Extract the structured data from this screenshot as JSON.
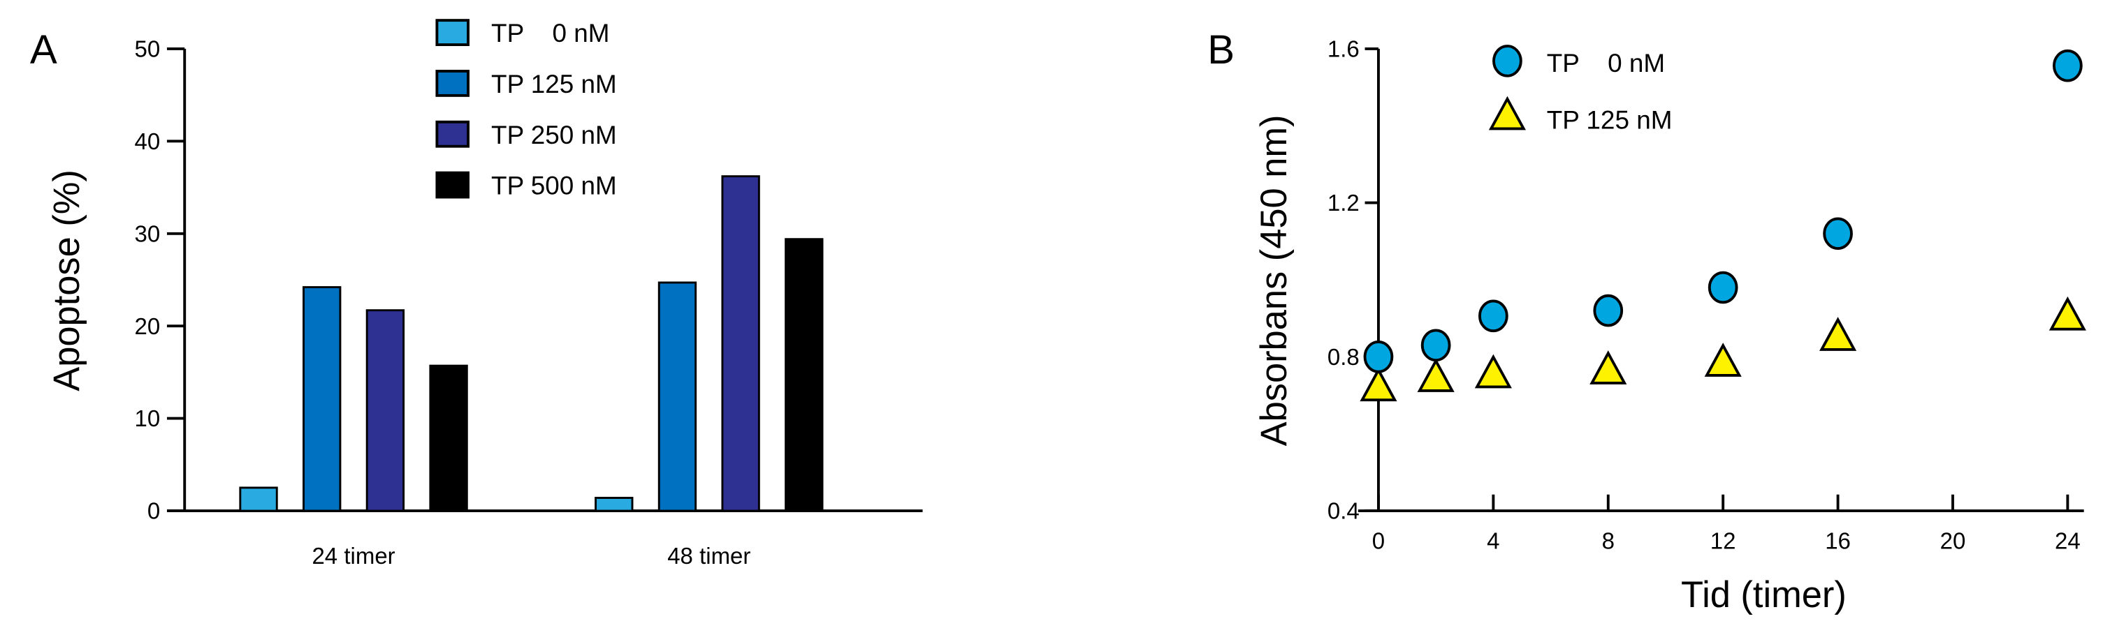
{
  "chart_data": [
    {
      "type": "bar",
      "panel_label": "A",
      "title": "",
      "xlabel": "",
      "ylabel": "Apoptose (%)",
      "ylim": [
        0,
        50
      ],
      "yticks": [
        "0",
        "10",
        "20",
        "30",
        "40",
        "50"
      ],
      "categories": [
        "24 timer",
        "48 timer"
      ],
      "grid": false,
      "legend_position": "top",
      "series": [
        {
          "name": "TP    0 nM",
          "color": "#29abe2",
          "values": [
            2.5,
            1.4
          ]
        },
        {
          "name": "TP 125 nM",
          "color": "#0070c0",
          "values": [
            24.2,
            24.7
          ]
        },
        {
          "name": "TP 250 nM",
          "color": "#2e3192",
          "values": [
            21.7,
            36.2
          ]
        },
        {
          "name": "TP 500 nM",
          "color": "#000000",
          "values": [
            15.7,
            29.4
          ]
        }
      ]
    },
    {
      "type": "scatter",
      "panel_label": "B",
      "title": "",
      "xlabel": "Tid (timer)",
      "ylabel": "Absorbans (450 nm)",
      "xlim": [
        0,
        24
      ],
      "ylim": [
        0.4,
        1.6
      ],
      "xticks": [
        "0",
        "4",
        "8",
        "12",
        "16",
        "20",
        "24"
      ],
      "yticks": [
        "0.4",
        "0.8",
        "1.2",
        "1.6"
      ],
      "grid": false,
      "legend_position": "top-left",
      "x": [
        0,
        2,
        4,
        8,
        12,
        16,
        24
      ],
      "series": [
        {
          "name": "TP    0 nM",
          "marker": "circle",
          "color": "#00a6e0",
          "values": [
            0.8,
            0.83,
            0.906,
            0.92,
            0.98,
            1.12,
            1.556
          ]
        },
        {
          "name": "TP 125 nM",
          "marker": "triangle",
          "color": "#fff200",
          "values": [
            0.716,
            0.74,
            0.75,
            0.76,
            0.78,
            0.847,
            0.9
          ]
        }
      ]
    }
  ]
}
